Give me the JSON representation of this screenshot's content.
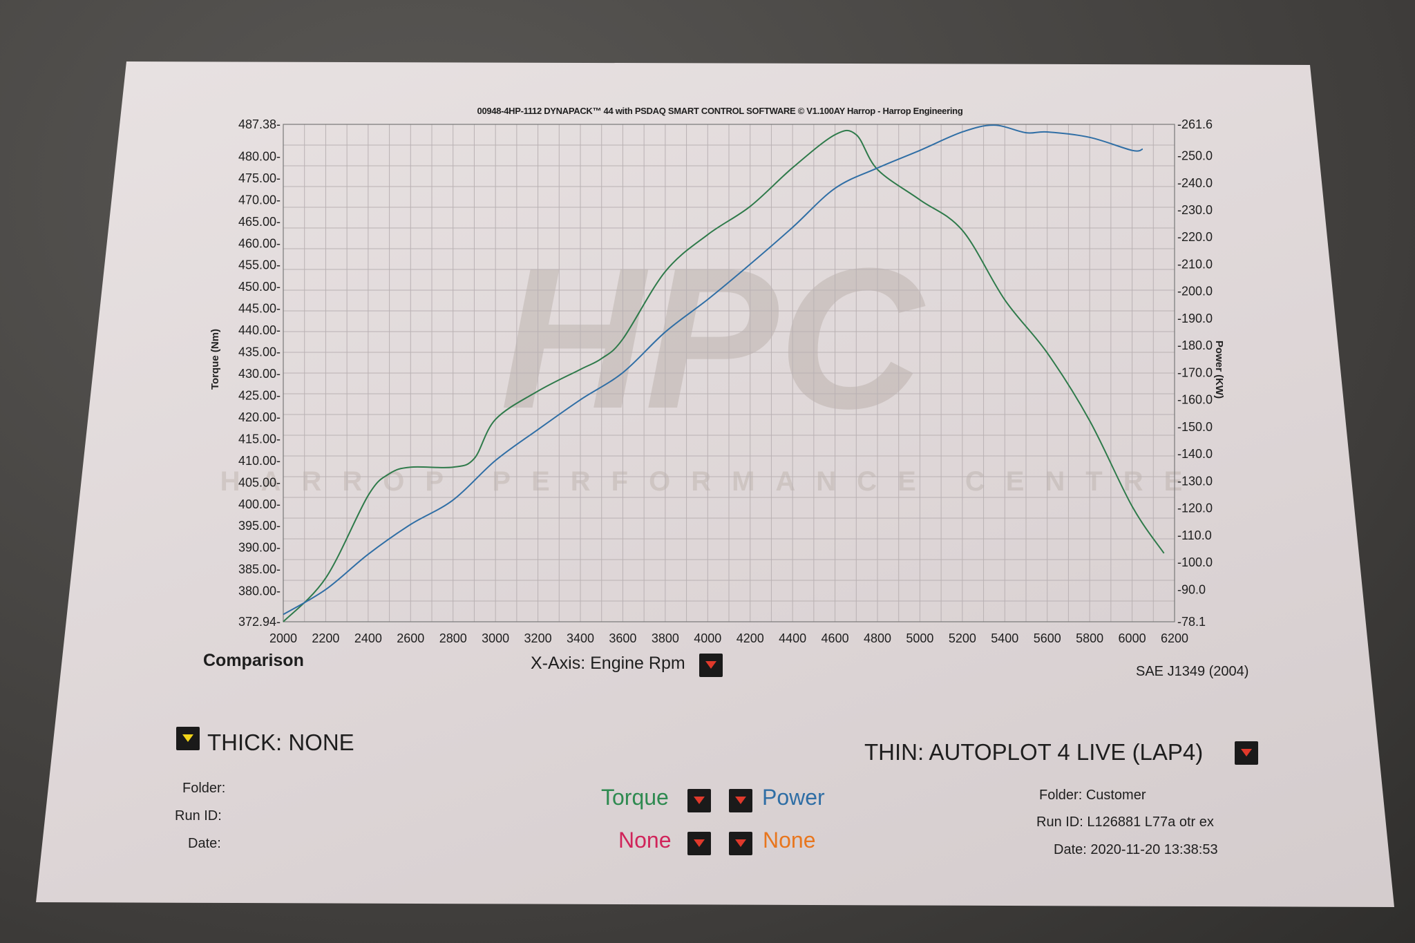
{
  "header": {
    "title": "00948-4HP-1112 DYNAPACK™ 44 with PSDAQ SMART CONTROL SOFTWARE © V1.100AY Harrop - Harrop Engineering"
  },
  "watermark": {
    "logo": "HPC",
    "text": "HARROP PERFORMANCE CENTRE"
  },
  "chart_data": {
    "type": "line",
    "title": "00948-4HP-1112 DYNAPACK™ 44 with PSDAQ SMART CONTROL SOFTWARE © V1.100AY Harrop - Harrop Engineering",
    "xlabel": "X-Axis: Engine Rpm",
    "ylabel": "Torque (Nm)",
    "y2label": "Power (KW)",
    "xlim": [
      2000,
      6200
    ],
    "ylim": [
      372.94,
      487.38
    ],
    "y2lim": [
      78.1,
      261.6
    ],
    "grid": true,
    "x_ticks": [
      "2000",
      "2200",
      "2400",
      "2600",
      "2800",
      "3000",
      "3200",
      "3400",
      "3600",
      "3800",
      "4000",
      "4200",
      "4400",
      "4600",
      "4800",
      "5000",
      "5200",
      "5400",
      "5600",
      "5800",
      "6000",
      "6200"
    ],
    "y_ticks": [
      "372.94",
      "380.00",
      "385.00",
      "390.00",
      "395.00",
      "400.00",
      "405.00",
      "410.00",
      "415.00",
      "420.00",
      "425.00",
      "430.00",
      "435.00",
      "440.00",
      "445.00",
      "450.00",
      "455.00",
      "460.00",
      "465.00",
      "470.00",
      "475.00",
      "480.00",
      "487.38"
    ],
    "y2_ticks": [
      "78.1",
      "90.0",
      "100.0",
      "110.0",
      "120.0",
      "130.0",
      "140.0",
      "150.0",
      "160.0",
      "170.0",
      "180.0",
      "190.0",
      "200.0",
      "210.0",
      "220.0",
      "230.0",
      "240.0",
      "250.0",
      "261.6"
    ],
    "series": [
      {
        "name": "Torque",
        "axis": "left",
        "color": "#2e7a4a",
        "x": [
          2000,
          2200,
          2400,
          2500,
          2600,
          2800,
          2900,
          3000,
          3200,
          3400,
          3500,
          3600,
          3800,
          4000,
          4200,
          4400,
          4600,
          4700,
          4800,
          5000,
          5200,
          5400,
          5600,
          5800,
          6000,
          6150
        ],
        "y": [
          372.94,
          383,
          402,
          407,
          408.5,
          408.5,
          410.5,
          419.5,
          426,
          431,
          433.5,
          438,
          453.5,
          462,
          468.5,
          477.4,
          485,
          485,
          477,
          470,
          463,
          447,
          434.8,
          419.2,
          399.5,
          388.7
        ]
      },
      {
        "name": "Power",
        "axis": "right",
        "color": "#2f6ea5",
        "x": [
          2000,
          2200,
          2400,
          2600,
          2800,
          3000,
          3200,
          3400,
          3600,
          3800,
          4000,
          4200,
          4400,
          4600,
          4800,
          5000,
          5200,
          5350,
          5500,
          5600,
          5800,
          6000,
          6050
        ],
        "y": [
          80.8,
          90,
          103,
          114,
          123,
          137.6,
          149,
          160,
          170,
          185,
          197,
          210,
          223.6,
          238,
          245.5,
          252,
          258.8,
          261.3,
          258.5,
          258.8,
          256.8,
          252,
          252.5
        ]
      }
    ]
  },
  "footer": {
    "comparison": "Comparison",
    "xaxis_label": "X-Axis: Engine Rpm",
    "standard": "SAE J1349 (2004)",
    "thick": {
      "label": "THICK: NONE",
      "folder": "Folder:",
      "run_id": "Run ID:",
      "date": "Date:"
    },
    "thin": {
      "label": "THIN: AUTOPLOT 4 LIVE (LAP4)",
      "folder_label": "Folder:",
      "folder": "Customer",
      "run_id_label": "Run ID:",
      "run_id": "L126881 L77a otr ex",
      "date_label": "Date:",
      "date": "2020-11-20 13:38:53"
    },
    "legend": [
      {
        "label": "Torque",
        "color": "#2e8a50"
      },
      {
        "label": "Power",
        "color": "#2f6ea5"
      },
      {
        "label": "None",
        "color": "#d0245a"
      },
      {
        "label": "None",
        "color": "#e8761e"
      }
    ]
  }
}
